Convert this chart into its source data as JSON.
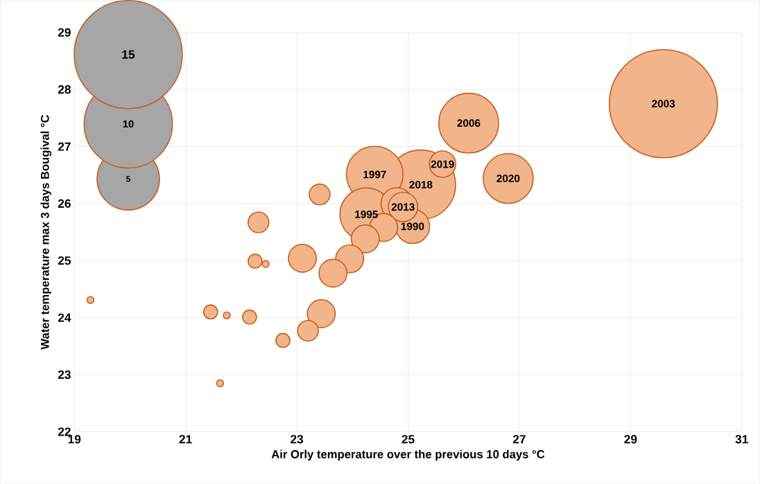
{
  "chart_data": {
    "type": "bubble",
    "xlabel": "Air Orly temperature over the previous 10 days °C",
    "ylabel": "Water temperature max 3 days Bougival °C",
    "xlim": [
      19,
      31
    ],
    "ylim": [
      22,
      29
    ],
    "xticks": [
      19,
      21,
      23,
      25,
      27,
      29,
      31
    ],
    "yticks": [
      22,
      23,
      24,
      25,
      26,
      27,
      28,
      29
    ],
    "grid": true,
    "size_legend": [
      5,
      10,
      15
    ],
    "series": [
      {
        "color": "#f2b48a",
        "x": [
          29.59,
          25.23,
          26.09,
          24.4,
          24.25,
          26.8,
          25.08,
          24.8,
          24.91,
          24.56,
          24.23,
          23.95,
          23.65,
          23.1,
          23.44,
          25.62,
          23.2,
          23.41,
          22.31,
          22.25,
          22.15,
          22.75,
          21.45,
          22.44,
          21.74,
          21.62,
          19.29
        ],
        "values": [
          27.75,
          26.33,
          27.41,
          26.51,
          25.81,
          26.44,
          25.6,
          26.0,
          25.94,
          25.58,
          25.38,
          25.03,
          24.78,
          25.04,
          24.07,
          26.69,
          23.77,
          26.16,
          25.67,
          24.99,
          24.01,
          23.6,
          24.1,
          24.94,
          24.04,
          22.85,
          24.31
        ],
        "sizes": [
          15,
          6.2,
          4.6,
          4.1,
          3.6,
          3.2,
          1.5,
          1.3,
          1.1,
          1.0,
          1.0,
          1.0,
          1.0,
          1.0,
          1.0,
          0.9,
          0.55,
          0.55,
          0.55,
          0.25,
          0.25,
          0.25,
          0.25,
          0.06,
          0.06,
          0.06,
          0.06
        ]
      }
    ],
    "annotations": [
      {
        "text": "2003",
        "x": 29.59,
        "y": 27.75
      },
      {
        "text": "2018",
        "x": 25.23,
        "y": 26.33
      },
      {
        "text": "2006",
        "x": 26.09,
        "y": 27.41
      },
      {
        "text": "1997",
        "x": 24.4,
        "y": 26.51
      },
      {
        "text": "1995",
        "x": 24.25,
        "y": 25.81
      },
      {
        "text": "2020",
        "x": 26.8,
        "y": 26.44
      },
      {
        "text": "1990",
        "x": 25.08,
        "y": 25.6
      },
      {
        "text": "2013",
        "x": 24.91,
        "y": 25.94
      },
      {
        "text": "2019",
        "x": 25.62,
        "y": 26.69
      }
    ]
  }
}
